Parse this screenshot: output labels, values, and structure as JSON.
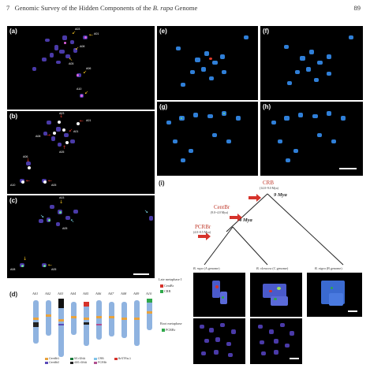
{
  "header": {
    "chapter": "7",
    "title_prefix": "Genomic Survey of the Hidden Components of the ",
    "title_species": "B. rapa",
    "title_suffix": " Genome",
    "page_number": "89"
  },
  "panels": {
    "a": "(a)",
    "b": "(b)",
    "c": "(c)",
    "d": "(d)",
    "e": "(e)",
    "f": "(f)",
    "g": "(g)",
    "h": "(h)",
    "i": "(i)"
  },
  "chromosome_tags": {
    "a": [
      "A03",
      "A01",
      "A08",
      "A05",
      "A06",
      "A10"
    ],
    "b": [
      "A03",
      "A01",
      "A08",
      "A01",
      "A05",
      "A06",
      "A10",
      "A05"
    ],
    "c": [
      "A03",
      "A05",
      "A08",
      "A05"
    ]
  },
  "ideogram": {
    "labels": [
      "A01",
      "A02",
      "A03",
      "A04",
      "A05",
      "A06",
      "A07",
      "A08",
      "A09",
      "A10"
    ],
    "legend": [
      "CentBr1",
      "CentBr2",
      "5S rDNA",
      "45S rDNA",
      "CRB",
      "PCRBr",
      "BrSTRa-1"
    ],
    "legend_colors": [
      "#e8a23c",
      "#5a4ab8",
      "#1a7a3a",
      "#222222",
      "#7fc3e8",
      "#b05090",
      "#d6332b"
    ]
  },
  "tree": {
    "crb": "CRB",
    "crb_age": "(14.0~9.0 Mya)",
    "centbr": "CentBr",
    "centbr_age": "(9.0~4.0 Mya)",
    "pcrbr": "PCRBr",
    "pcrbr_age": "(4.0~0.5 Mya)",
    "mya_9": "9 Mya",
    "mya_4": "4 Mya",
    "species": [
      {
        "name": "B. rapa",
        "genome": " (A genome)"
      },
      {
        "name": "B. oleracea",
        "genome": " (C genome)"
      },
      {
        "name": "B. nigra",
        "genome": " (B genome)"
      }
    ]
  },
  "rows": {
    "late_metaphase": "Late metaphase I",
    "late_legend": [
      "CentBr",
      "CRB"
    ],
    "late_colors": [
      "#d6332b",
      "#2fa84a"
    ],
    "root_metaphase": "Root metaphase",
    "root_legend": [
      "PCRBr"
    ],
    "root_colors": [
      "#2fa84a"
    ]
  }
}
